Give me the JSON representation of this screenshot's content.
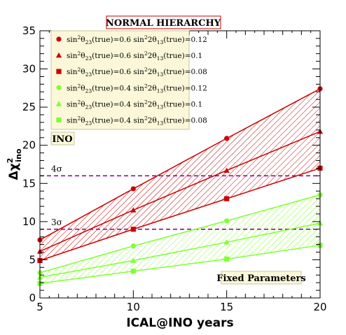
{
  "chart_data": {
    "type": "line",
    "title": "NORMAL HIERARCHY",
    "xlabel": "ICAL@INO years",
    "ylabel_main": "Δχ",
    "ylabel_sup": "2",
    "ylabel_sub": "ino",
    "xlim": [
      5,
      20
    ],
    "ylim": [
      0,
      35
    ],
    "x_ticks": [
      5,
      10,
      15,
      20
    ],
    "y_ticks": [
      0,
      5,
      10,
      15,
      20,
      25,
      30,
      35
    ],
    "grid": false,
    "legend_placement": "top-left",
    "label_ino": "INO",
    "label_fixed": "Fixed Parameters",
    "sigma_lines": [
      {
        "label": "4σ",
        "value": 16.0,
        "color": "#800080"
      },
      {
        "label": "3σ",
        "value": 9.0,
        "color": "#800080"
      }
    ],
    "x": [
      5,
      10,
      15,
      20
    ],
    "series": [
      {
        "name": "sin²θ23(true)=0.6  sin²2θ13(true)=0.12",
        "t23": "0.6",
        "t13": "0.12",
        "marker": "circle",
        "color": "#cc0000",
        "values": [
          7.6,
          14.3,
          20.9,
          27.4
        ]
      },
      {
        "name": "sin²θ23(true)=0.6  sin²2θ13(true)=0.1",
        "t23": "0.6",
        "t13": "0.1",
        "marker": "triangle",
        "color": "#cc0000",
        "values": [
          6.1,
          11.5,
          16.7,
          21.8
        ]
      },
      {
        "name": "sin²θ23(true)=0.6  sin²2θ13(true)=0.08",
        "t23": "0.6",
        "t13": "0.08",
        "marker": "square",
        "color": "#cc0000",
        "values": [
          4.9,
          9.0,
          13.0,
          17.0
        ]
      },
      {
        "name": "sin²θ23(true)=0.4  sin²2θ13(true)=0.12",
        "t23": "0.4",
        "t13": "0.12",
        "marker": "circle",
        "color": "#80ff33",
        "values": [
          3.3,
          6.8,
          10.1,
          13.5
        ]
      },
      {
        "name": "sin²θ23(true)=0.4  sin²2θ13(true)=0.1",
        "t23": "0.4",
        "t13": "0.1",
        "marker": "triangle",
        "color": "#80ff33",
        "values": [
          2.7,
          4.9,
          7.3,
          9.8
        ]
      },
      {
        "name": "sin²θ23(true)=0.4  sin²2θ13(true)=0.08",
        "t23": "0.4",
        "t13": "0.08",
        "marker": "square",
        "color": "#80ff33",
        "values": [
          1.9,
          3.5,
          5.1,
          6.9
        ]
      }
    ]
  }
}
